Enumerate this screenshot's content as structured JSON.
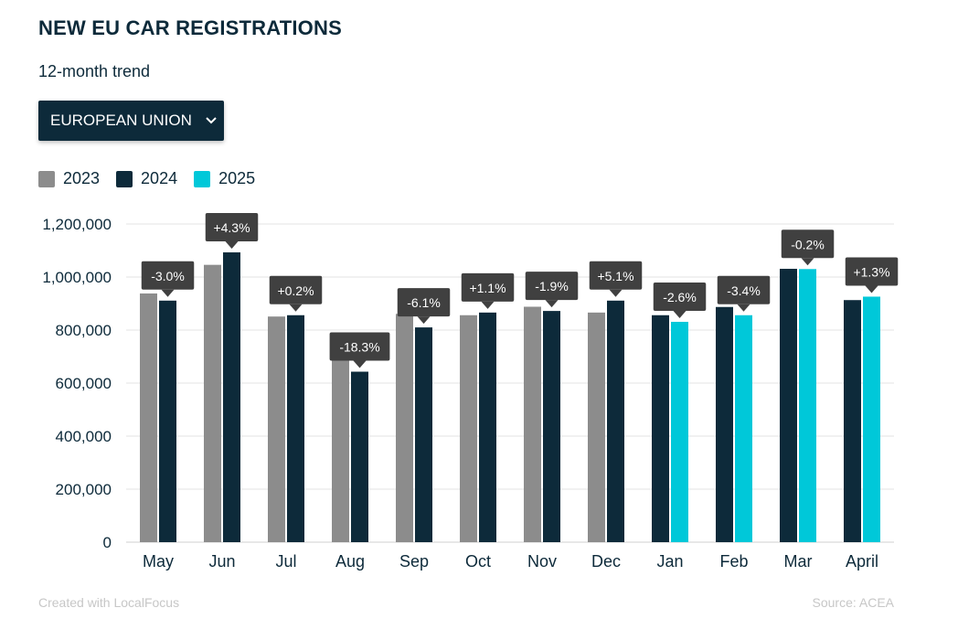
{
  "header": {
    "title": "NEW EU CAR REGISTRATIONS",
    "subtitle": "12-month trend"
  },
  "dropdown": {
    "selected": "EUROPEAN UNION"
  },
  "footer": {
    "credit": "Created with LocalFocus",
    "source": "Source:  ACEA"
  },
  "colors": {
    "2023": "#8c8c8c",
    "2024": "#0d2a3a",
    "2025": "#00c8d9",
    "callout": "#404040",
    "grid": "#e3e3e3"
  },
  "chart_data": {
    "type": "bar",
    "categories": [
      "May",
      "Jun",
      "Jul",
      "Aug",
      "Sep",
      "Oct",
      "Nov",
      "Dec",
      "Jan",
      "Feb",
      "Mar",
      "April"
    ],
    "series": [
      {
        "name": "2023",
        "values": [
          938000,
          1046000,
          851000,
          788000,
          861000,
          856000,
          888000,
          866000,
          null,
          null,
          null,
          null
        ]
      },
      {
        "name": "2024",
        "values": [
          911000,
          1093000,
          856000,
          643000,
          810000,
          866000,
          872000,
          911000,
          856000,
          887000,
          1031000,
          913000
        ]
      },
      {
        "name": "2025",
        "values": [
          null,
          null,
          null,
          null,
          null,
          null,
          null,
          null,
          831000,
          856000,
          1030000,
          926000
        ]
      }
    ],
    "changes": [
      "-3.0%",
      "+4.3%",
      "+0.2%",
      "-18.3%",
      "-6.1%",
      "+1.1%",
      "-1.9%",
      "+5.1%",
      "-2.6%",
      "-3.4%",
      "-0.2%",
      "+1.3%"
    ],
    "yticks": [
      0,
      200000,
      400000,
      600000,
      800000,
      1000000,
      1200000
    ],
    "ytick_labels": [
      "0",
      "200,000",
      "400,000",
      "600,000",
      "800,000",
      "1,000,000",
      "1,200,000"
    ],
    "ylim": [
      0,
      1200000
    ],
    "grid": true,
    "legend": "top-left"
  }
}
